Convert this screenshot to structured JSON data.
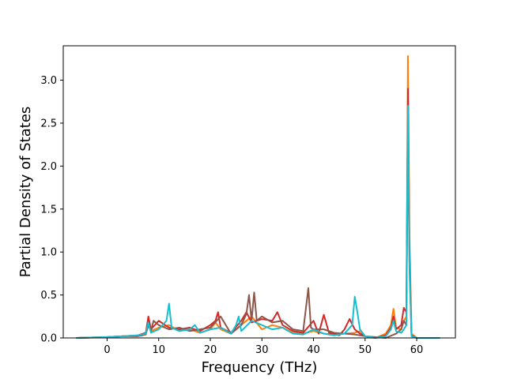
{
  "chart_data": {
    "type": "line",
    "title": "",
    "xlabel": "Frequency (THz)",
    "ylabel": "Partial Density of States",
    "xlim": [
      -8.5,
      67.5
    ],
    "ylim": [
      0,
      3.4
    ],
    "xticks": [
      0,
      10,
      20,
      30,
      40,
      50,
      60
    ],
    "yticks": [
      0.0,
      0.5,
      1.0,
      1.5,
      2.0,
      2.5,
      3.0
    ],
    "xtick_labels": [
      "0",
      "10",
      "20",
      "30",
      "40",
      "50",
      "60"
    ],
    "ytick_labels": [
      "0.0",
      "0.5",
      "1.0",
      "1.5",
      "2.0",
      "2.5",
      "3.0"
    ],
    "grid": false,
    "legend": "none",
    "series": [
      {
        "color": "#ff7f0e",
        "x": [
          -6,
          0,
          3,
          6,
          7.5,
          8,
          8.5,
          10,
          12,
          14,
          16,
          18,
          20,
          21,
          22,
          24,
          26,
          28,
          30,
          32,
          34,
          36,
          38,
          40,
          42,
          44,
          46,
          48,
          49,
          50,
          52,
          54,
          55,
          55.5,
          56,
          57,
          57.5,
          58,
          58.3,
          58.6,
          59,
          60,
          62,
          64.5
        ],
        "y": [
          0,
          0.01,
          0.02,
          0.03,
          0.05,
          0.22,
          0.08,
          0.12,
          0.15,
          0.08,
          0.1,
          0.06,
          0.1,
          0.18,
          0.1,
          0.05,
          0.15,
          0.25,
          0.1,
          0.15,
          0.12,
          0.06,
          0.05,
          0.08,
          0.05,
          0.04,
          0.05,
          0.06,
          0.08,
          0.02,
          0.0,
          0.05,
          0.15,
          0.34,
          0.12,
          0.1,
          0.2,
          0.25,
          3.28,
          1.2,
          0.05,
          0.0,
          0.0,
          0.0
        ]
      },
      {
        "color": "#d62728",
        "x": [
          -6,
          0,
          3,
          6,
          7.5,
          8,
          8.5,
          10,
          12,
          14,
          16,
          18,
          20,
          21,
          21.5,
          22,
          24,
          26,
          27,
          28,
          30,
          32,
          33,
          34,
          36,
          38,
          40,
          41,
          42,
          43,
          44,
          45,
          46,
          47,
          48,
          49,
          50,
          52,
          54,
          55,
          55.5,
          56,
          57,
          57.5,
          58,
          58.3,
          58.6,
          59,
          60,
          62,
          64.5
        ],
        "y": [
          0,
          0.01,
          0.02,
          0.03,
          0.06,
          0.25,
          0.1,
          0.2,
          0.12,
          0.1,
          0.12,
          0.08,
          0.15,
          0.2,
          0.3,
          0.12,
          0.06,
          0.2,
          0.3,
          0.18,
          0.22,
          0.2,
          0.3,
          0.15,
          0.08,
          0.06,
          0.2,
          0.05,
          0.27,
          0.06,
          0.05,
          0.03,
          0.1,
          0.22,
          0.1,
          0.05,
          0.02,
          0.0,
          0.03,
          0.12,
          0.25,
          0.1,
          0.15,
          0.35,
          0.3,
          2.9,
          1.0,
          0.03,
          0.0,
          0.0,
          0.0
        ]
      },
      {
        "color": "#8c564b",
        "x": [
          -6,
          0,
          3,
          6,
          7.5,
          8,
          8.5,
          9,
          10,
          12,
          14,
          16,
          18,
          20,
          22,
          24,
          26,
          27,
          27.5,
          28,
          28.5,
          29,
          30,
          32,
          34,
          36,
          38,
          39,
          39.5,
          40,
          42,
          44,
          46,
          48,
          50,
          54,
          56,
          57,
          57.5,
          58,
          58.3,
          58.6,
          59,
          60,
          62,
          64.5
        ],
        "y": [
          0,
          0.01,
          0.02,
          0.02,
          0.04,
          0.15,
          0.08,
          0.2,
          0.15,
          0.1,
          0.12,
          0.08,
          0.1,
          0.12,
          0.25,
          0.05,
          0.15,
          0.28,
          0.5,
          0.2,
          0.53,
          0.2,
          0.25,
          0.18,
          0.2,
          0.1,
          0.08,
          0.58,
          0.12,
          0.1,
          0.1,
          0.06,
          0.05,
          0.04,
          0.02,
          0.0,
          0.05,
          0.1,
          0.2,
          0.15,
          2.5,
          0.8,
          0.02,
          0.0,
          0.0,
          0.0
        ]
      },
      {
        "color": "#17becf",
        "x": [
          -6,
          0,
          3,
          6,
          7.5,
          8,
          8.5,
          10,
          11.5,
          12,
          12.5,
          14,
          16,
          17,
          18,
          20,
          22,
          24,
          25,
          25.5,
          26,
          28,
          30,
          32,
          34,
          36,
          38,
          40,
          42,
          44,
          46,
          47.5,
          48,
          48.5,
          49,
          50,
          52,
          54,
          55,
          55.5,
          56,
          57,
          57.5,
          58,
          58.3,
          58.6,
          59,
          60,
          62,
          64.5
        ],
        "y": [
          0,
          0.01,
          0.02,
          0.03,
          0.05,
          0.18,
          0.06,
          0.1,
          0.2,
          0.4,
          0.12,
          0.08,
          0.1,
          0.15,
          0.06,
          0.1,
          0.12,
          0.05,
          0.15,
          0.25,
          0.08,
          0.2,
          0.15,
          0.1,
          0.12,
          0.05,
          0.04,
          0.1,
          0.05,
          0.03,
          0.05,
          0.15,
          0.48,
          0.3,
          0.1,
          0.02,
          0.0,
          0.02,
          0.1,
          0.2,
          0.08,
          0.06,
          0.1,
          0.15,
          2.7,
          0.9,
          0.02,
          0.0,
          0.0,
          0.0
        ]
      }
    ]
  }
}
